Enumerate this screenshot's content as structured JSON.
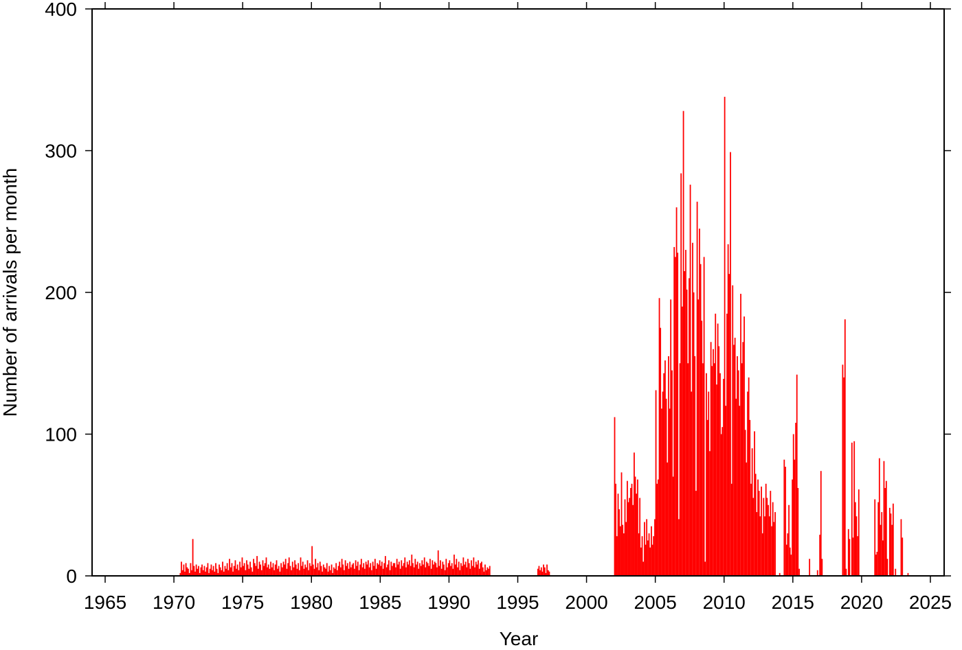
{
  "chart_data": {
    "type": "bar",
    "xlabel": "Year",
    "ylabel": "Number of arrivals per month",
    "color": "#ff0000",
    "xlim": [
      1964.05,
      2026
    ],
    "ylim": [
      0,
      400
    ],
    "xticks": [
      1965,
      1970,
      1975,
      1980,
      1985,
      1990,
      1995,
      2000,
      2005,
      2010,
      2015,
      2020,
      2025
    ],
    "yticks": [
      0,
      100,
      200,
      300,
      400
    ],
    "x": [
      1970.42,
      1970.5,
      1970.58,
      1970.67,
      1970.75,
      1970.83,
      1970.92,
      1971,
      1971.08,
      1971.17,
      1971.25,
      1971.33,
      1971.42,
      1971.5,
      1971.58,
      1971.67,
      1971.75,
      1971.83,
      1971.92,
      1972,
      1972.08,
      1972.17,
      1972.25,
      1972.33,
      1972.42,
      1972.5,
      1972.58,
      1972.67,
      1972.75,
      1972.83,
      1972.92,
      1973,
      1973.08,
      1973.17,
      1973.25,
      1973.33,
      1973.42,
      1973.5,
      1973.58,
      1973.67,
      1973.75,
      1973.83,
      1973.92,
      1974,
      1974.08,
      1974.17,
      1974.25,
      1974.33,
      1974.42,
      1974.5,
      1974.58,
      1974.67,
      1974.75,
      1974.83,
      1974.92,
      1975,
      1975.08,
      1975.17,
      1975.25,
      1975.33,
      1975.42,
      1975.5,
      1975.58,
      1975.67,
      1975.75,
      1975.83,
      1975.92,
      1976,
      1976.08,
      1976.17,
      1976.25,
      1976.33,
      1976.42,
      1976.5,
      1976.58,
      1976.67,
      1976.75,
      1976.83,
      1976.92,
      1977,
      1977.08,
      1977.17,
      1977.25,
      1977.33,
      1977.42,
      1977.5,
      1977.58,
      1977.67,
      1977.75,
      1977.83,
      1977.92,
      1978,
      1978.08,
      1978.17,
      1978.25,
      1978.33,
      1978.42,
      1978.5,
      1978.58,
      1978.67,
      1978.75,
      1978.83,
      1978.92,
      1979,
      1979.08,
      1979.17,
      1979.25,
      1979.33,
      1979.42,
      1979.5,
      1979.58,
      1979.67,
      1979.75,
      1979.83,
      1979.92,
      1980,
      1980.08,
      1980.17,
      1980.25,
      1980.33,
      1980.42,
      1980.5,
      1980.58,
      1980.67,
      1980.75,
      1980.83,
      1980.92,
      1981,
      1981.08,
      1981.17,
      1981.25,
      1981.33,
      1981.42,
      1981.5,
      1981.58,
      1981.67,
      1981.75,
      1981.83,
      1981.92,
      1982,
      1982.08,
      1982.17,
      1982.25,
      1982.33,
      1982.42,
      1982.5,
      1982.58,
      1982.67,
      1982.75,
      1982.83,
      1982.92,
      1983,
      1983.08,
      1983.17,
      1983.25,
      1983.33,
      1983.42,
      1983.5,
      1983.58,
      1983.67,
      1983.75,
      1983.83,
      1983.92,
      1984,
      1984.08,
      1984.17,
      1984.25,
      1984.33,
      1984.42,
      1984.5,
      1984.58,
      1984.67,
      1984.75,
      1984.83,
      1984.92,
      1985,
      1985.08,
      1985.17,
      1985.25,
      1985.33,
      1985.42,
      1985.5,
      1985.58,
      1985.67,
      1985.75,
      1985.83,
      1985.92,
      1986,
      1986.08,
      1986.17,
      1986.25,
      1986.33,
      1986.42,
      1986.5,
      1986.58,
      1986.67,
      1986.75,
      1986.83,
      1986.92,
      1987,
      1987.08,
      1987.17,
      1987.25,
      1987.33,
      1987.42,
      1987.5,
      1987.58,
      1987.67,
      1987.75,
      1987.83,
      1987.92,
      1988,
      1988.08,
      1988.17,
      1988.25,
      1988.33,
      1988.42,
      1988.5,
      1988.58,
      1988.67,
      1988.75,
      1988.83,
      1988.92,
      1989,
      1989.08,
      1989.17,
      1989.25,
      1989.33,
      1989.42,
      1989.5,
      1989.58,
      1989.67,
      1989.75,
      1989.83,
      1989.92,
      1990,
      1990.08,
      1990.17,
      1990.25,
      1990.33,
      1990.42,
      1990.5,
      1990.58,
      1990.67,
      1990.75,
      1990.83,
      1990.92,
      1991,
      1991.08,
      1991.17,
      1991.25,
      1991.33,
      1991.42,
      1991.5,
      1991.58,
      1991.67,
      1991.75,
      1991.83,
      1991.92,
      1992,
      1992.08,
      1992.17,
      1992.25,
      1992.33,
      1992.42,
      1992.5,
      1992.58,
      1992.67,
      1992.75,
      1992.83,
      1992.92,
      1996.42,
      1996.5,
      1996.58,
      1996.67,
      1996.75,
      1996.83,
      1996.92,
      1997,
      1997.08,
      1997.17,
      1997.25,
      2002,
      2002.08,
      2002.17,
      2002.25,
      2002.33,
      2002.42,
      2002.5,
      2002.58,
      2002.67,
      2002.75,
      2002.83,
      2002.92,
      2003,
      2003.08,
      2003.17,
      2003.25,
      2003.33,
      2003.42,
      2003.5,
      2003.58,
      2003.67,
      2003.75,
      2003.83,
      2003.92,
      2004,
      2004.08,
      2004.17,
      2004.25,
      2004.33,
      2004.42,
      2004.5,
      2004.58,
      2004.67,
      2004.75,
      2004.83,
      2004.92,
      2005,
      2005.08,
      2005.17,
      2005.25,
      2005.33,
      2005.42,
      2005.5,
      2005.58,
      2005.67,
      2005.75,
      2005.83,
      2005.92,
      2006,
      2006.08,
      2006.17,
      2006.25,
      2006.33,
      2006.42,
      2006.5,
      2006.58,
      2006.67,
      2006.75,
      2006.83,
      2006.92,
      2007,
      2007.08,
      2007.17,
      2007.25,
      2007.33,
      2007.42,
      2007.5,
      2007.58,
      2007.67,
      2007.75,
      2007.83,
      2007.92,
      2008,
      2008.08,
      2008.17,
      2008.25,
      2008.33,
      2008.42,
      2008.5,
      2008.58,
      2008.67,
      2008.75,
      2008.83,
      2008.92,
      2009,
      2009.08,
      2009.17,
      2009.25,
      2009.33,
      2009.42,
      2009.5,
      2009.58,
      2009.67,
      2009.75,
      2009.83,
      2009.92,
      2010,
      2010.08,
      2010.17,
      2010.25,
      2010.33,
      2010.42,
      2010.5,
      2010.58,
      2010.67,
      2010.75,
      2010.83,
      2010.92,
      2011,
      2011.08,
      2011.17,
      2011.25,
      2011.33,
      2011.42,
      2011.5,
      2011.58,
      2011.67,
      2011.75,
      2011.83,
      2011.92,
      2012,
      2012.08,
      2012.17,
      2012.25,
      2012.33,
      2012.42,
      2012.5,
      2012.58,
      2012.67,
      2012.75,
      2012.83,
      2012.92,
      2013,
      2013.08,
      2013.17,
      2013.25,
      2013.33,
      2013.42,
      2013.5,
      2013.58,
      2013.67,
      2014,
      2014.33,
      2014.42,
      2014.5,
      2014.58,
      2014.67,
      2014.75,
      2014.83,
      2014.92,
      2015,
      2015.08,
      2015.17,
      2015.25,
      2015.33,
      2015.42,
      2016.17,
      2016.75,
      2016.92,
      2017,
      2017.08,
      2018.58,
      2018.67,
      2018.75,
      2018.83,
      2019,
      2019.08,
      2019.25,
      2019.33,
      2019.42,
      2019.5,
      2019.58,
      2019.67,
      2019.75,
      2020.92,
      2021,
      2021.08,
      2021.17,
      2021.25,
      2021.33,
      2021.42,
      2021.5,
      2021.58,
      2021.67,
      2021.75,
      2021.83,
      2022,
      2022.08,
      2022.17,
      2022.25,
      2022.42,
      2022.83,
      2022.92,
      2023.33
    ],
    "values": [
      2,
      10,
      4,
      8,
      3,
      9,
      6,
      5,
      2,
      9,
      4,
      26,
      7,
      3,
      8,
      5,
      7,
      2,
      6,
      8,
      4,
      7,
      3,
      6,
      9,
      2,
      5,
      8,
      4,
      7,
      3,
      9,
      5,
      2,
      8,
      6,
      4,
      10,
      3,
      7,
      5,
      9,
      4,
      12,
      6,
      9,
      3,
      7,
      11,
      5,
      8,
      4,
      10,
      6,
      13,
      7,
      9,
      4,
      11,
      8,
      5,
      10,
      6,
      3,
      12,
      9,
      7,
      14,
      5,
      10,
      8,
      4,
      11,
      7,
      9,
      13,
      6,
      8,
      5,
      10,
      6,
      9,
      4,
      8,
      11,
      5,
      7,
      3,
      9,
      6,
      10,
      8,
      12,
      5,
      9,
      13,
      7,
      4,
      10,
      6,
      11,
      8,
      5,
      9,
      4,
      13,
      7,
      10,
      5,
      8,
      6,
      11,
      4,
      9,
      7,
      21,
      8,
      5,
      12,
      6,
      9,
      4,
      10,
      7,
      3,
      8,
      6,
      5,
      9,
      3,
      7,
      4,
      8,
      2,
      6,
      5,
      9,
      4,
      7,
      10,
      6,
      12,
      8,
      4,
      11,
      7,
      9,
      5,
      10,
      6,
      8,
      9,
      5,
      11,
      7,
      10,
      4,
      8,
      12,
      6,
      9,
      5,
      10,
      8,
      11,
      6,
      9,
      4,
      10,
      7,
      12,
      5,
      9,
      8,
      11,
      7,
      10,
      5,
      9,
      14,
      6,
      8,
      11,
      4,
      10,
      7,
      9,
      9,
      6,
      12,
      8,
      10,
      5,
      11,
      7,
      9,
      13,
      6,
      10,
      8,
      11,
      7,
      15,
      9,
      6,
      12,
      8,
      10,
      5,
      9,
      7,
      11,
      8,
      13,
      6,
      10,
      9,
      7,
      12,
      5,
      11,
      8,
      10,
      9,
      6,
      18,
      7,
      11,
      5,
      10,
      8,
      4,
      12,
      6,
      9,
      11,
      7,
      9,
      5,
      15,
      8,
      12,
      6,
      10,
      4,
      9,
      7,
      13,
      8,
      10,
      6,
      12,
      9,
      5,
      11,
      7,
      13,
      6,
      10,
      8,
      11,
      5,
      9,
      10,
      6,
      3,
      8,
      4,
      6,
      5,
      7,
      5,
      7,
      4,
      6,
      3,
      8,
      6,
      2,
      8,
      4,
      3,
      112,
      65,
      28,
      58,
      47,
      35,
      73,
      36,
      30,
      54,
      38,
      67,
      52,
      55,
      62,
      65,
      50,
      87,
      70,
      58,
      68,
      30,
      55,
      20,
      28,
      10,
      38,
      22,
      40,
      25,
      30,
      20,
      35,
      22,
      28,
      40,
      131,
      65,
      68,
      196,
      175,
      118,
      130,
      143,
      152,
      125,
      80,
      155,
      118,
      195,
      145,
      70,
      232,
      225,
      260,
      228,
      40,
      150,
      284,
      190,
      328,
      215,
      230,
      202,
      150,
      210,
      276,
      130,
      235,
      200,
      155,
      60,
      264,
      195,
      245,
      220,
      180,
      150,
      225,
      10,
      143,
      110,
      130,
      88,
      165,
      148,
      160,
      150,
      185,
      135,
      178,
      162,
      143,
      100,
      105,
      139,
      338,
      120,
      185,
      234,
      213,
      299,
      65,
      205,
      163,
      168,
      125,
      155,
      145,
      120,
      199,
      150,
      165,
      183,
      103,
      80,
      130,
      140,
      110,
      65,
      90,
      55,
      102,
      72,
      45,
      68,
      60,
      42,
      63,
      30,
      55,
      42,
      65,
      55,
      50,
      42,
      60,
      35,
      52,
      38,
      45,
      2,
      82,
      77,
      22,
      30,
      50,
      20,
      15,
      68,
      100,
      82,
      108,
      142,
      62,
      5,
      12,
      4,
      29,
      74,
      12,
      149,
      140,
      181,
      5,
      33,
      26,
      94,
      27,
      95,
      52,
      42,
      28,
      61,
      54,
      15,
      17,
      52,
      83,
      36,
      45,
      25,
      81,
      62,
      67,
      12,
      48,
      44,
      36,
      51,
      5,
      40,
      27,
      2
    ]
  }
}
